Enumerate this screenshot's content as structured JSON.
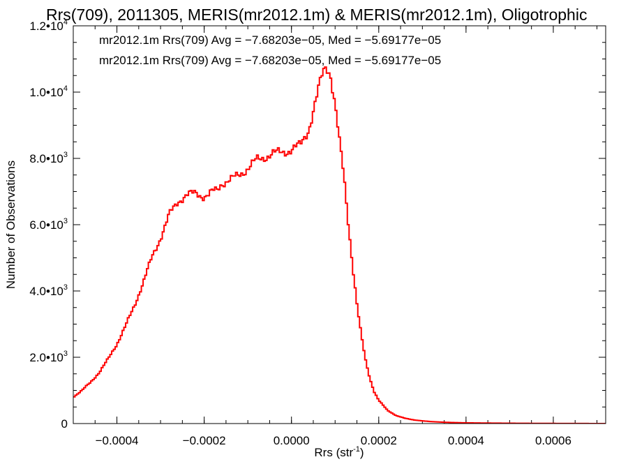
{
  "chart_data": {
    "type": "line",
    "style": "step",
    "title": "Rrs(709), 2011305, MERIS(mr2012.1m) & MERIS(mr2012.1m), Oligotrophic",
    "xlabel": "Rrs (str",
    "xlabel_sup": "-1",
    "xlabel_suffix": ")",
    "ylabel": "Number of Observations",
    "xlim": [
      -0.0005,
      0.00072
    ],
    "ylim": [
      0,
      12000
    ],
    "grid": false,
    "x_ticks": [
      {
        "value": -0.0004,
        "label": "−0.0004"
      },
      {
        "value": -0.0002,
        "label": "−0.0002"
      },
      {
        "value": 0.0,
        "label": "0.0000"
      },
      {
        "value": 0.0002,
        "label": "0.0002"
      },
      {
        "value": 0.0004,
        "label": "0.0004"
      },
      {
        "value": 0.0006,
        "label": "0.0006"
      }
    ],
    "y_ticks": [
      {
        "value": 0,
        "label": "0",
        "exp": ""
      },
      {
        "value": 2000,
        "label": "2.0•10",
        "exp": "3"
      },
      {
        "value": 4000,
        "label": "4.0•10",
        "exp": "3"
      },
      {
        "value": 6000,
        "label": "6.0•10",
        "exp": "3"
      },
      {
        "value": 8000,
        "label": "8.0•10",
        "exp": "3"
      },
      {
        "value": 10000,
        "label": "1.0•10",
        "exp": "4"
      },
      {
        "value": 12000,
        "label": "1.2•10",
        "exp": "4"
      }
    ],
    "annotations": [
      {
        "text": "mr2012.1m Rrs(709) Avg = −7.68203e−05, Med = −5.69177e−05",
        "color": "#000000"
      },
      {
        "text": "mr2012.1m Rrs(709) Avg = −7.68203e−05, Med = −5.69177e−05",
        "color": "#ff0000"
      }
    ],
    "series": [
      {
        "color": "#ff0000",
        "x": [
          -0.0005,
          -0.00048,
          -0.00046,
          -0.00044,
          -0.00042,
          -0.0004,
          -0.00038,
          -0.00036,
          -0.00034,
          -0.00032,
          -0.0003,
          -0.00028,
          -0.00026,
          -0.00024,
          -0.00022,
          -0.0002,
          -0.00019,
          -0.00018,
          -0.00017,
          -0.00016,
          -0.00014,
          -0.00012,
          -0.0001,
          -8e-05,
          -6e-05,
          -4e-05,
          -2e-05,
          0.0,
          2e-05,
          4e-05,
          5e-05,
          6e-05,
          7e-05,
          7.5e-05,
          8e-05,
          8.5e-05,
          9e-05,
          9.5e-05,
          0.0001,
          0.00011,
          0.00012,
          0.00013,
          0.00014,
          0.00015,
          0.00016,
          0.00017,
          0.00018,
          0.00019,
          0.0002,
          0.00022,
          0.00024,
          0.00026,
          0.00028,
          0.0003,
          0.00032,
          0.00034,
          0.00036,
          0.00038,
          0.0004,
          0.00045,
          0.0005,
          0.00055,
          0.0006,
          0.00065,
          0.0007,
          0.00072
        ],
        "y": [
          800,
          1000,
          1250,
          1550,
          1950,
          2400,
          2950,
          3550,
          4250,
          5000,
          5600,
          6300,
          6700,
          6900,
          6950,
          6850,
          6900,
          7000,
          7050,
          7250,
          7350,
          7500,
          7700,
          7950,
          8050,
          8150,
          8200,
          8250,
          8400,
          8900,
          9400,
          9950,
          10500,
          10700,
          10800,
          10700,
          10500,
          10050,
          9600,
          8500,
          7500,
          6100,
          4800,
          3600,
          2650,
          1900,
          1350,
          950,
          700,
          400,
          240,
          160,
          110,
          80,
          60,
          45,
          35,
          28,
          22,
          15,
          10,
          6,
          4,
          2,
          1,
          0
        ]
      }
    ]
  }
}
